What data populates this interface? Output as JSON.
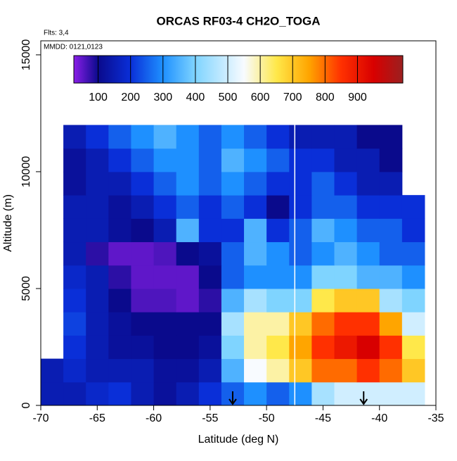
{
  "chart_data": {
    "type": "heatmap",
    "title": "ORCAS RF03-4 CH2O_TOGA",
    "annotations": [
      "Flts: 3,4",
      "MMDD: 0121,0123"
    ],
    "x_label": "Latitude (deg N)",
    "y_label": "Altitude (m)",
    "xlim": [
      -70,
      -35
    ],
    "ylim": [
      0,
      15600
    ],
    "xticks": [
      -70,
      -65,
      -60,
      -55,
      -50,
      -45,
      -40,
      -35
    ],
    "yticks": [
      0,
      5000,
      10000,
      15000
    ],
    "xbins": [
      -70,
      -68,
      -66,
      -64,
      -62,
      -60,
      -58,
      -56,
      -54,
      -52,
      -50,
      -48,
      -46,
      -44,
      -42,
      -40,
      -38,
      -36
    ],
    "ybins": [
      0,
      1000,
      2000,
      3000,
      4000,
      5000,
      6000,
      7000,
      8000,
      9000,
      10000,
      11000,
      12000
    ],
    "z": [
      [
        150,
        150,
        180,
        200,
        150,
        120,
        150,
        200,
        250,
        300,
        250,
        300,
        450,
        500,
        500,
        500,
        500
      ],
      [
        150,
        180,
        150,
        150,
        150,
        120,
        120,
        150,
        350,
        550,
        600,
        700,
        800,
        800,
        850,
        800,
        700
      ],
      [
        null,
        200,
        150,
        120,
        120,
        100,
        100,
        120,
        400,
        600,
        650,
        750,
        850,
        900,
        950,
        850,
        650
      ],
      [
        null,
        220,
        150,
        120,
        100,
        100,
        100,
        100,
        450,
        600,
        600,
        700,
        800,
        850,
        850,
        750,
        500
      ],
      [
        null,
        200,
        150,
        100,
        60,
        60,
        50,
        80,
        350,
        450,
        400,
        400,
        650,
        700,
        700,
        450,
        400
      ],
      [
        null,
        180,
        150,
        80,
        50,
        50,
        50,
        100,
        250,
        300,
        300,
        300,
        400,
        400,
        350,
        350,
        300
      ],
      [
        null,
        150,
        80,
        50,
        50,
        60,
        100,
        120,
        250,
        350,
        300,
        250,
        300,
        350,
        300,
        250,
        250
      ],
      [
        null,
        150,
        150,
        120,
        100,
        150,
        350,
        200,
        200,
        350,
        200,
        250,
        350,
        300,
        250,
        250,
        200
      ],
      [
        null,
        150,
        150,
        120,
        150,
        200,
        250,
        200,
        250,
        200,
        100,
        200,
        250,
        250,
        200,
        200,
        200
      ],
      [
        null,
        120,
        150,
        150,
        200,
        250,
        300,
        250,
        300,
        250,
        200,
        200,
        250,
        200,
        150,
        150,
        null
      ],
      [
        null,
        120,
        150,
        200,
        250,
        300,
        300,
        250,
        350,
        300,
        250,
        200,
        200,
        150,
        150,
        100,
        null
      ],
      [
        null,
        150,
        200,
        250,
        300,
        350,
        300,
        250,
        300,
        250,
        200,
        150,
        150,
        150,
        100,
        100,
        null
      ]
    ],
    "vline": -47.5,
    "arrows": [
      -53,
      -41.4
    ],
    "colorbar": {
      "lim": [
        25,
        1040
      ],
      "ticks": [
        100,
        200,
        300,
        400,
        500,
        600,
        700,
        800,
        900
      ],
      "stops": [
        {
          "value": 25,
          "color": "#8a1ee8"
        },
        {
          "value": 100,
          "color": "#0a0a8c"
        },
        {
          "value": 200,
          "color": "#0a2fd8"
        },
        {
          "value": 300,
          "color": "#1e90ff"
        },
        {
          "value": 400,
          "color": "#7fd4ff"
        },
        {
          "value": 550,
          "color": "#f8fbff"
        },
        {
          "value": 650,
          "color": "#ffe84a"
        },
        {
          "value": 750,
          "color": "#ffa500"
        },
        {
          "value": 850,
          "color": "#ff3000"
        },
        {
          "value": 950,
          "color": "#d80000"
        },
        {
          "value": 1040,
          "color": "#9b2020"
        }
      ]
    }
  }
}
